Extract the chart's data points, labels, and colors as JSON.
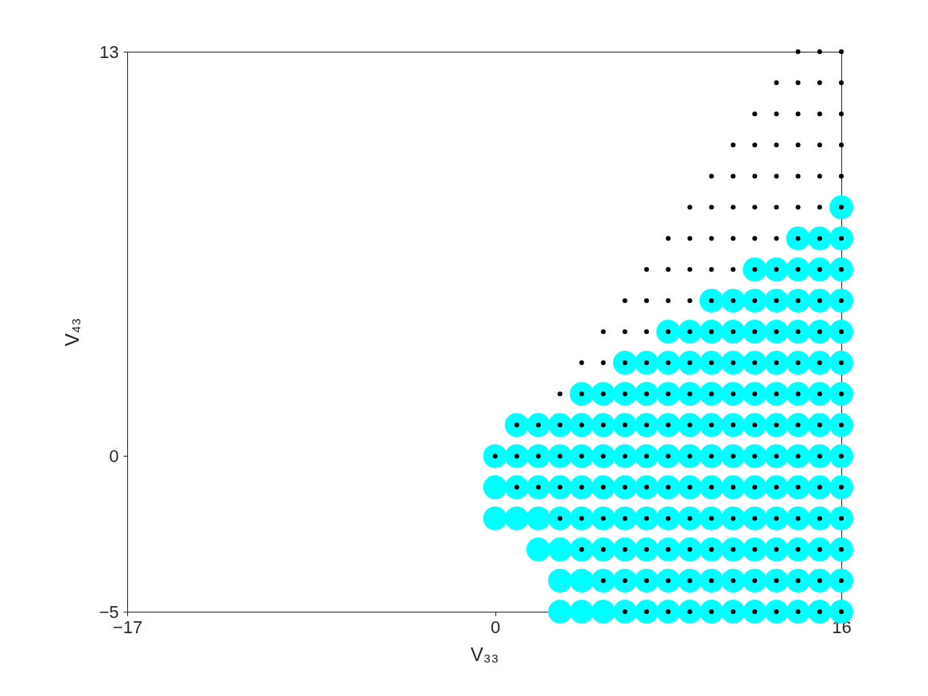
{
  "chart_data": {
    "type": "scatter",
    "marker": "circle",
    "xlabel": "V₃₃",
    "ylabel": "V₄₃",
    "xlim": [
      -17,
      16
    ],
    "ylim": [
      -5,
      13
    ],
    "xticks": [
      -17,
      0,
      16
    ],
    "yticks": [
      -5,
      0,
      13
    ],
    "grid": false,
    "series": [
      {
        "color": "#00ffff",
        "x": [
          16,
          14,
          15,
          16,
          12,
          13,
          14,
          15,
          16,
          10,
          11,
          12,
          13,
          14,
          15,
          16,
          8,
          9,
          10,
          11,
          12,
          13,
          14,
          15,
          16,
          6,
          7,
          8,
          9,
          10,
          11,
          12,
          13,
          14,
          15,
          16,
          4,
          5,
          6,
          7,
          8,
          9,
          10,
          11,
          12,
          13,
          14,
          15,
          16,
          1,
          2,
          3,
          4,
          5,
          6,
          7,
          8,
          9,
          10,
          11,
          12,
          13,
          14,
          15,
          16,
          0,
          1,
          2,
          3,
          4,
          5,
          6,
          7,
          8,
          9,
          10,
          11,
          12,
          13,
          14,
          15,
          16,
          0,
          1,
          2,
          3,
          4,
          5,
          6,
          7,
          8,
          9,
          10,
          11,
          12,
          13,
          14,
          15,
          16,
          0,
          1,
          2,
          3,
          4,
          5,
          6,
          7,
          8,
          9,
          10,
          11,
          12,
          13,
          14,
          15,
          16,
          2,
          3,
          4,
          5,
          6,
          7,
          8,
          9,
          10,
          11,
          12,
          13,
          14,
          15,
          16,
          3,
          4,
          5,
          6,
          7,
          8,
          9,
          10,
          11,
          12,
          13,
          14,
          15,
          16,
          3,
          4,
          5,
          6,
          7,
          8,
          9,
          10,
          11,
          12,
          13,
          14,
          15,
          16
        ],
        "values": [
          8,
          7,
          7,
          7,
          6,
          6,
          6,
          6,
          6,
          5,
          5,
          5,
          5,
          5,
          5,
          5,
          4,
          4,
          4,
          4,
          4,
          4,
          4,
          4,
          4,
          3,
          3,
          3,
          3,
          3,
          3,
          3,
          3,
          3,
          3,
          3,
          2,
          2,
          2,
          2,
          2,
          2,
          2,
          2,
          2,
          2,
          2,
          2,
          2,
          1,
          1,
          1,
          1,
          1,
          1,
          1,
          1,
          1,
          1,
          1,
          1,
          1,
          1,
          1,
          1,
          0,
          0,
          0,
          0,
          0,
          0,
          0,
          0,
          0,
          0,
          0,
          0,
          0,
          0,
          0,
          0,
          0,
          -1,
          -1,
          -1,
          -1,
          -1,
          -1,
          -1,
          -1,
          -1,
          -1,
          -1,
          -1,
          -1,
          -1,
          -1,
          -1,
          -1,
          -2,
          -2,
          -2,
          -2,
          -2,
          -2,
          -2,
          -2,
          -2,
          -2,
          -2,
          -2,
          -2,
          -2,
          -2,
          -2,
          -2,
          -3,
          -3,
          -3,
          -3,
          -3,
          -3,
          -3,
          -3,
          -3,
          -3,
          -3,
          -3,
          -3,
          -3,
          -3,
          -4,
          -4,
          -4,
          -4,
          -4,
          -4,
          -4,
          -4,
          -4,
          -4,
          -4,
          -4,
          -4,
          -4,
          -5,
          -5,
          -5,
          -5,
          -5,
          -5,
          -5,
          -5,
          -5,
          -5,
          -5,
          -5,
          -5,
          -5
        ]
      },
      {
        "color": "#000000",
        "x": [
          14,
          15,
          16,
          13,
          14,
          15,
          16,
          12,
          13,
          14,
          15,
          16,
          11,
          12,
          13,
          14,
          15,
          16,
          10,
          11,
          12,
          13,
          14,
          15,
          16,
          9,
          10,
          11,
          12,
          13,
          14,
          15,
          16,
          8,
          9,
          10,
          11,
          12,
          13,
          14,
          15,
          16,
          7,
          8,
          9,
          10,
          11,
          12,
          13,
          14,
          15,
          16,
          6,
          7,
          8,
          9,
          10,
          11,
          12,
          13,
          14,
          15,
          16,
          5,
          6,
          7,
          8,
          9,
          10,
          11,
          12,
          13,
          14,
          15,
          16,
          4,
          5,
          6,
          7,
          8,
          9,
          10,
          11,
          12,
          13,
          14,
          15,
          16,
          3,
          4,
          5,
          6,
          7,
          8,
          9,
          10,
          11,
          12,
          13,
          14,
          15,
          16,
          1,
          2,
          3,
          4,
          5,
          6,
          7,
          8,
          9,
          10,
          11,
          12,
          13,
          14,
          15,
          16,
          0,
          1,
          2,
          3,
          4,
          5,
          6,
          7,
          8,
          9,
          10,
          11,
          12,
          13,
          14,
          15,
          16,
          1,
          2,
          3,
          4,
          5,
          6,
          7,
          8,
          9,
          10,
          11,
          12,
          13,
          14,
          15,
          16,
          3,
          4,
          5,
          6,
          7,
          8,
          9,
          10,
          11,
          12,
          13,
          14,
          15,
          16,
          4,
          5,
          6,
          7,
          8,
          9,
          10,
          11,
          12,
          13,
          14,
          15,
          16,
          5,
          6,
          7,
          8,
          9,
          10,
          11,
          12,
          13,
          14,
          15,
          16,
          6,
          7,
          8,
          9,
          10,
          11,
          12,
          13,
          14,
          15,
          16
        ],
        "values": [
          13,
          13,
          13,
          12,
          12,
          12,
          12,
          11,
          11,
          11,
          11,
          11,
          10,
          10,
          10,
          10,
          10,
          10,
          9,
          9,
          9,
          9,
          9,
          9,
          9,
          8,
          8,
          8,
          8,
          8,
          8,
          8,
          8,
          7,
          7,
          7,
          7,
          7,
          7,
          7,
          7,
          7,
          6,
          6,
          6,
          6,
          6,
          6,
          6,
          6,
          6,
          6,
          5,
          5,
          5,
          5,
          5,
          5,
          5,
          5,
          5,
          5,
          5,
          4,
          4,
          4,
          4,
          4,
          4,
          4,
          4,
          4,
          4,
          4,
          4,
          3,
          3,
          3,
          3,
          3,
          3,
          3,
          3,
          3,
          3,
          3,
          3,
          3,
          2,
          2,
          2,
          2,
          2,
          2,
          2,
          2,
          2,
          2,
          2,
          2,
          2,
          2,
          1,
          1,
          1,
          1,
          1,
          1,
          1,
          1,
          1,
          1,
          1,
          1,
          1,
          1,
          1,
          1,
          0,
          0,
          0,
          0,
          0,
          0,
          0,
          0,
          0,
          0,
          0,
          0,
          0,
          0,
          0,
          0,
          0,
          -1,
          -1,
          -1,
          -1,
          -1,
          -1,
          -1,
          -1,
          -1,
          -1,
          -1,
          -1,
          -1,
          -1,
          -1,
          -1,
          -2,
          -2,
          -2,
          -2,
          -2,
          -2,
          -2,
          -2,
          -2,
          -2,
          -2,
          -2,
          -2,
          -2,
          -3,
          -3,
          -3,
          -3,
          -3,
          -3,
          -3,
          -3,
          -3,
          -3,
          -3,
          -3,
          -3,
          -4,
          -4,
          -4,
          -4,
          -4,
          -4,
          -4,
          -4,
          -4,
          -4,
          -4,
          -4,
          -5,
          -5,
          -5,
          -5,
          -5,
          -5,
          -5,
          -5,
          -5,
          -5,
          -5
        ]
      }
    ]
  }
}
